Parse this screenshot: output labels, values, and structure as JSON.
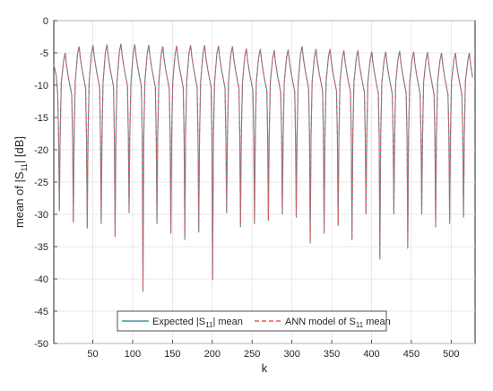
{
  "chart_data": {
    "type": "line",
    "xlabel": "k",
    "ylabel_main": "mean of |S",
    "ylabel_sub": "11",
    "ylabel_tail": "| [dB]",
    "xlim": [
      1,
      530
    ],
    "ylim": [
      -50,
      0
    ],
    "xticks": [
      50,
      100,
      150,
      200,
      250,
      300,
      350,
      400,
      450,
      500
    ],
    "yticks": [
      0,
      -5,
      -10,
      -15,
      -20,
      -25,
      -30,
      -35,
      -40,
      -45,
      -50
    ],
    "grid": true,
    "legend_position": "bottom-center",
    "series_styles": [
      {
        "color": "#4a90a4",
        "dash": "solid"
      },
      {
        "color": "#e05a5a",
        "dash": "dashed"
      }
    ],
    "legend": [
      {
        "main": "Expected |S",
        "sub": "11",
        "tail": "| mean"
      },
      {
        "main": "ANN model of S",
        "sub": "11",
        "tail": " mean"
      }
    ],
    "cycle_period": 17.5,
    "first_cycle_k": 8,
    "peak_dB": [
      -5.0,
      -4.0,
      -3.8,
      -3.7,
      -3.6,
      -3.7,
      -3.8,
      -4.0,
      -3.9,
      -3.8,
      -3.8,
      -3.9,
      -4.0,
      -4.3,
      -4.4,
      -4.6,
      -4.5,
      -4.0,
      -4.4,
      -4.4,
      -4.6,
      -4.6,
      -4.8,
      -4.8,
      -4.7,
      -4.8,
      -4.9,
      -5.0,
      -5.0,
      -5.0
    ],
    "dip_dB": [
      -29.5,
      -31.3,
      -32.2,
      -31.5,
      -33.5,
      -29.8,
      -42.0,
      -31.5,
      -33.0,
      -34.0,
      -32.8,
      -40.2,
      -29.8,
      -32.0,
      -31.5,
      -31.0,
      -30.0,
      -30.5,
      -34.5,
      -33.0,
      -31.8,
      -34.0,
      -30.0,
      -37.0,
      -30.0,
      -35.3,
      -30.0,
      -32.0,
      -31.5,
      -30.5
    ],
    "ann_dip_dB": [
      -29.3,
      -31.0,
      -32.0,
      -31.0,
      -33.3,
      -29.5,
      -41.5,
      -31.0,
      -32.8,
      -33.5,
      -32.5,
      -40.0,
      -29.5,
      -31.5,
      -31.0,
      -30.7,
      -29.8,
      -30.2,
      -34.0,
      -32.8,
      -31.5,
      -33.8,
      -29.8,
      -36.5,
      -29.8,
      -35.0,
      -29.8,
      -31.7,
      -31.2,
      -30.3
    ]
  }
}
